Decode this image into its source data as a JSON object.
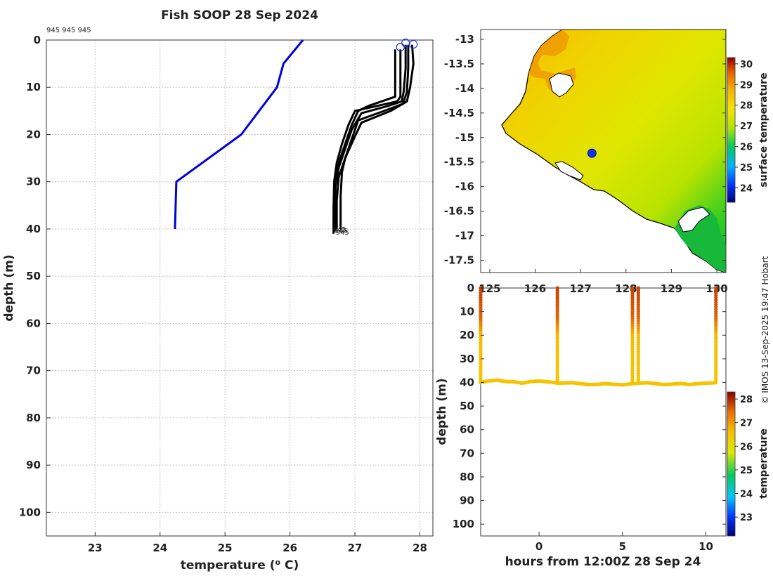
{
  "title": "Fish SOOP 28 Sep 2024",
  "ids_label": "945 945 945",
  "credit": "© IMOS 13-Sep-2025 19:47 Hobart",
  "colors": {
    "profile": "#000000",
    "climatology": "#0000dd",
    "marker": "#2233dd",
    "grid": "#c8c8c8"
  },
  "chart_data": [
    {
      "type": "line",
      "name": "profile-panel",
      "xlabel": "temperature (",
      "xlabel_sup": "o",
      "xlabel_tail": " C)",
      "ylabel": "depth (m)",
      "xlim": [
        22.25,
        28.2
      ],
      "ylim": [
        0,
        105
      ],
      "y_reversed": true,
      "xticks": [
        23,
        24,
        25,
        26,
        27,
        28
      ],
      "yticks": [
        0,
        10,
        20,
        30,
        40,
        50,
        60,
        70,
        80,
        90,
        100
      ],
      "grid": true,
      "profile_end_labels": [
        "945",
        "945",
        "945"
      ],
      "series": [
        {
          "style": "climatology",
          "points": [
            [
              26.2,
              0
            ],
            [
              25.9,
              5
            ],
            [
              25.8,
              10
            ],
            [
              25.25,
              20
            ],
            [
              24.25,
              30
            ],
            [
              24.23,
              40
            ]
          ]
        },
        {
          "style": "profile",
          "points": [
            [
              27.62,
              2
            ],
            [
              27.62,
              5
            ],
            [
              27.62,
              11
            ],
            [
              27.62,
              12
            ],
            [
              27.2,
              14
            ],
            [
              27.05,
              15
            ],
            [
              26.95,
              18
            ],
            [
              26.85,
              22
            ],
            [
              26.75,
              26
            ],
            [
              26.7,
              30
            ],
            [
              26.7,
              35
            ],
            [
              26.7,
              40
            ]
          ]
        },
        {
          "style": "profile",
          "points": [
            [
              27.7,
              2
            ],
            [
              27.7,
              8
            ],
            [
              27.7,
              12
            ],
            [
              27.65,
              13
            ],
            [
              27.0,
              15
            ],
            [
              26.9,
              18
            ],
            [
              26.8,
              22
            ],
            [
              26.72,
              26
            ],
            [
              26.68,
              30
            ],
            [
              26.67,
              36
            ],
            [
              26.67,
              41
            ]
          ]
        },
        {
          "style": "profile",
          "points": [
            [
              27.78,
              1
            ],
            [
              27.78,
              6
            ],
            [
              27.75,
              11
            ],
            [
              27.72,
              13
            ],
            [
              27.5,
              14
            ],
            [
              27.1,
              15.5
            ],
            [
              26.95,
              19
            ],
            [
              26.85,
              23
            ],
            [
              26.75,
              27
            ],
            [
              26.7,
              31
            ],
            [
              26.69,
              36
            ],
            [
              26.69,
              40.5
            ]
          ]
        },
        {
          "style": "profile",
          "points": [
            [
              27.82,
              1
            ],
            [
              27.82,
              6
            ],
            [
              27.8,
              11
            ],
            [
              27.74,
              13.5
            ],
            [
              27.45,
              15
            ],
            [
              27.05,
              17
            ],
            [
              26.95,
              21
            ],
            [
              26.85,
              25
            ],
            [
              26.75,
              29
            ],
            [
              26.72,
              34
            ],
            [
              26.72,
              40
            ]
          ]
        },
        {
          "style": "profile",
          "points": [
            [
              27.88,
              1
            ],
            [
              27.9,
              5
            ],
            [
              27.85,
              10
            ],
            [
              27.8,
              13
            ],
            [
              27.55,
              15
            ],
            [
              27.1,
              17.5
            ],
            [
              26.98,
              21
            ],
            [
              26.85,
              25
            ],
            [
              26.8,
              28
            ],
            [
              26.78,
              33
            ],
            [
              26.78,
              40
            ]
          ]
        }
      ],
      "surface_markers": [
        [
          27.7,
          1.5
        ],
        [
          27.78,
          0.6
        ],
        [
          27.9,
          0.9
        ]
      ]
    },
    {
      "type": "heatmap",
      "name": "surface-temperature-map",
      "xticks": [
        "125",
        "126",
        "127",
        "128",
        "129",
        "130"
      ],
      "xticks_values": [
        125,
        126,
        127,
        128,
        129,
        130
      ],
      "yticks": [
        "-13",
        "-13.5",
        "-14",
        "-14.5",
        "-15",
        "-15.5",
        "-16",
        "-16.5",
        "-17",
        "-17.5"
      ],
      "yticks_values": [
        -13,
        -13.5,
        -14,
        -14.5,
        -15,
        -15.5,
        -16,
        -16.5,
        -17,
        -17.5
      ],
      "xlim": [
        124.8,
        130.2
      ],
      "ylim": [
        -17.75,
        -12.8
      ],
      "colorbar_label": "surface temperature",
      "colorbar_ticks": [
        "24",
        "25",
        "26",
        "27",
        "28",
        "29",
        "30"
      ],
      "colorbar_range": [
        23.3,
        30.3
      ],
      "station": {
        "lon": 127.25,
        "lat": -15.32
      }
    },
    {
      "type": "scatter",
      "name": "time-depth-panel",
      "xlabel": "hours from 12:00Z 28 Sep 24",
      "ylabel": "depth (m)",
      "xlim": [
        -3.5,
        11.2
      ],
      "ylim": [
        0,
        105
      ],
      "y_reversed": true,
      "xticks": [
        0,
        5,
        10
      ],
      "yticks": [
        0,
        10,
        20,
        30,
        40,
        50,
        60,
        70,
        80,
        90,
        100
      ],
      "colorbar_label": "temperature",
      "colorbar_ticks": [
        "23",
        "24",
        "25",
        "26",
        "27",
        "28"
      ],
      "colorbar_range": [
        22.2,
        28.3
      ],
      "casts_hours": [
        -3.5,
        1.1,
        5.6,
        5.95,
        10.6
      ],
      "bottom_depth_hours": [
        -3.5,
        -3,
        -2.5,
        -2,
        -1.5,
        -1,
        -0.5,
        0,
        0.5,
        1,
        1.1,
        1.5,
        2,
        2.5,
        3,
        3.5,
        4,
        4.5,
        5,
        5.5,
        5.6,
        5.95,
        6.5,
        7,
        7.5,
        8,
        8.5,
        9,
        9.5,
        10,
        10.6
      ],
      "bottom_depth_values": [
        40,
        39.3,
        39,
        39.6,
        39.7,
        40.3,
        39.6,
        39.4,
        39.7,
        40.1,
        40.3,
        40.2,
        40.1,
        40.5,
        40.9,
        40.8,
        40.5,
        40.8,
        41.0,
        40.6,
        40.5,
        40.3,
        40.1,
        40.5,
        40.9,
        40.7,
        40.4,
        40.9,
        40.5,
        40.3,
        40.1
      ],
      "surface_temp": 27.8,
      "bottom_temp": 26.5
    }
  ]
}
